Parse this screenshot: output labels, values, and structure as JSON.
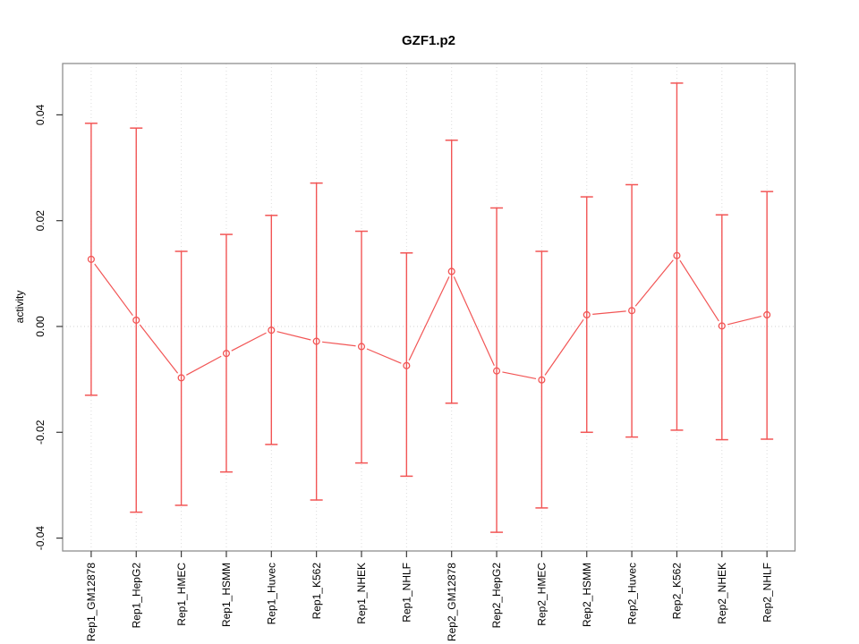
{
  "chart_data": {
    "type": "line",
    "subtype": "points-with-error-bars",
    "title": "GZF1.p2",
    "xlabel": "",
    "ylabel": "activity",
    "categories": [
      "Rep1_GM12878",
      "Rep1_HepG2",
      "Rep1_HMEC",
      "Rep1_HSMM",
      "Rep1_Huvec",
      "Rep1_K562",
      "Rep1_NHEK",
      "Rep1_NHLF",
      "Rep2_GM12878",
      "Rep2_HepG2",
      "Rep2_HMEC",
      "Rep2_HSMM",
      "Rep2_Huvec",
      "Rep2_K562",
      "Rep2_NHEK",
      "Rep2_NHLF"
    ],
    "series": [
      {
        "name": "activity",
        "values": [
          0.0127,
          0.0012,
          -0.0097,
          -0.0051,
          -0.0007,
          -0.0028,
          -0.0038,
          -0.0074,
          0.0104,
          -0.0084,
          -0.0101,
          0.0022,
          0.003,
          0.0134,
          0.0001,
          0.0022
        ]
      }
    ],
    "error_high": [
      0.0384,
      0.0375,
      0.0142,
      0.0174,
      0.021,
      0.0271,
      0.018,
      0.0139,
      0.0352,
      0.0224,
      0.0142,
      0.0245,
      0.0268,
      0.046,
      0.0211,
      0.0255
    ],
    "error_low": [
      -0.013,
      -0.0351,
      -0.0338,
      -0.0275,
      -0.0223,
      -0.0328,
      -0.0258,
      -0.0283,
      -0.0145,
      -0.0389,
      -0.0343,
      -0.02,
      -0.0209,
      -0.0196,
      -0.0214,
      -0.0213
    ],
    "y_ticks": [
      0.04,
      0.02,
      0.0,
      -0.02,
      -0.04
    ],
    "ylim": [
      -0.0445,
      0.0475
    ],
    "grid": "vertical dotted gridline per category, dotted horizontal line at zero",
    "legend": "none",
    "colors": {
      "series": "#f25555",
      "grid": "#dcdcdc",
      "zero_line": "#d0d0d0",
      "box": "#8f8f8f",
      "tick": "#3a3a3a",
      "text": "#000000",
      "background": "#ffffff"
    }
  }
}
